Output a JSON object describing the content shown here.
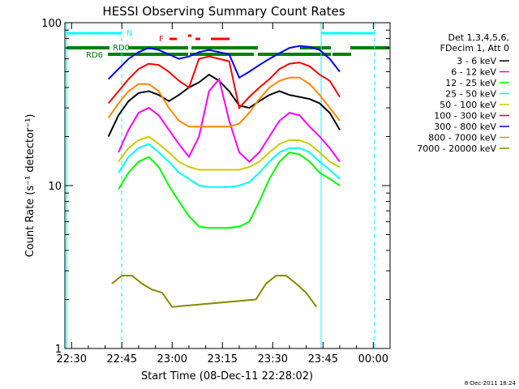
{
  "chart_data": {
    "type": "line",
    "title": "HESSI Observing Summary Count Rates",
    "xlabel": "Start Time (08-Dec-11 22:28:02)",
    "ylabel": "Count Rate (s⁻¹ detector⁻¹)",
    "y_scale": "log",
    "ylim": [
      1,
      100
    ],
    "xlim_minutes_after_2230": [
      -2,
      95
    ],
    "x_ticks": [
      "22:30",
      "22:45",
      "23:00",
      "23:15",
      "23:30",
      "23:45",
      "00:00"
    ],
    "y_ticks": [
      "1",
      "10",
      "100"
    ],
    "legend_title": [
      "Det 1,3,4,5,6,",
      "FDecim 1, Att 0"
    ],
    "legend_position": "right",
    "series": [
      {
        "name": "3 - 6 keV",
        "color": "#000000",
        "x": [
          11,
          14,
          17,
          20,
          23,
          26,
          29,
          32,
          35,
          38,
          41,
          44,
          47,
          50,
          53,
          56,
          59,
          62,
          65,
          68,
          71,
          74,
          77,
          80
        ],
        "values": [
          20,
          27,
          33,
          37,
          38,
          36,
          33,
          36,
          40,
          43,
          48,
          44,
          38,
          31,
          30,
          33,
          36,
          38,
          36,
          35,
          34,
          32,
          28,
          22
        ]
      },
      {
        "name": "6 - 12 keV",
        "color": "#ff00ff",
        "x": [
          14,
          17,
          20,
          23,
          26,
          29,
          32,
          35,
          38,
          41,
          44,
          47,
          50,
          53,
          56,
          59,
          62,
          65,
          68,
          71,
          74,
          77,
          80
        ],
        "values": [
          16,
          22,
          28,
          30,
          27,
          22,
          18,
          15,
          20,
          38,
          45,
          25,
          16,
          14,
          16,
          20,
          25,
          28,
          27,
          23,
          20,
          17,
          14
        ]
      },
      {
        "name": "12 - 25 keV",
        "color": "#00ff00",
        "x": [
          14,
          17,
          20,
          23,
          26,
          29,
          32,
          35,
          38,
          41,
          44,
          47,
          50,
          53,
          56,
          59,
          62,
          65,
          68,
          71,
          74,
          77,
          80
        ],
        "values": [
          9.5,
          12,
          14,
          15,
          13,
          10,
          8,
          6.5,
          5.6,
          5.5,
          5.5,
          5.5,
          5.6,
          6,
          8,
          11,
          14,
          16,
          15.5,
          14,
          12,
          11,
          10
        ]
      },
      {
        "name": "25 - 50 keV",
        "color": "#00ffff",
        "x": [
          14,
          17,
          20,
          23,
          26,
          29,
          32,
          35,
          38,
          41,
          44,
          47,
          50,
          53,
          56,
          59,
          62,
          65,
          68,
          71,
          74,
          77,
          80
        ],
        "values": [
          12,
          15,
          17,
          18,
          16,
          14,
          12,
          11,
          10,
          9.8,
          9.8,
          9.8,
          10,
          10.5,
          12,
          14,
          16,
          17,
          17,
          16,
          14,
          12.5,
          11
        ]
      },
      {
        "name": "50 - 100 keV",
        "color": "#cccc00",
        "x": [
          14,
          17,
          20,
          23,
          26,
          29,
          32,
          35,
          38,
          41,
          44,
          47,
          50,
          53,
          56,
          59,
          62,
          65,
          68,
          71,
          74,
          77,
          80
        ],
        "values": [
          14,
          17,
          19,
          20,
          18,
          16,
          14,
          13,
          12.5,
          12.5,
          12.5,
          12.5,
          12.5,
          13,
          14,
          16,
          18,
          19,
          19,
          18,
          16,
          14,
          13
        ]
      },
      {
        "name": "100 - 300 keV",
        "color": "#ff0000",
        "x": [
          11,
          14,
          17,
          20,
          23,
          26,
          29,
          32,
          35,
          38,
          41,
          44,
          47,
          50,
          53,
          56,
          59,
          62,
          65,
          68,
          71,
          74,
          77,
          80
        ],
        "values": [
          32,
          38,
          45,
          52,
          56,
          55,
          50,
          44,
          40,
          60,
          62,
          60,
          58,
          30,
          35,
          40,
          45,
          52,
          56,
          57,
          54,
          48,
          44,
          35
        ]
      },
      {
        "name": "300 - 800 keV",
        "color": "#0000ff",
        "x": [
          11,
          14,
          17,
          20,
          23,
          26,
          29,
          32,
          35,
          38,
          41,
          44,
          47,
          50,
          53,
          56,
          59,
          62,
          65,
          68,
          71,
          74,
          77,
          80
        ],
        "values": [
          45,
          52,
          60,
          66,
          70,
          68,
          64,
          60,
          62,
          66,
          68,
          66,
          64,
          46,
          50,
          55,
          60,
          65,
          70,
          72,
          71,
          68,
          60,
          50
        ]
      },
      {
        "name": "800 - 7000 keV",
        "color": "#ff8800",
        "x": [
          11,
          14,
          17,
          20,
          23,
          26,
          29,
          32,
          35,
          38,
          41,
          44,
          47,
          50,
          53,
          56,
          59,
          62,
          65,
          68,
          71,
          74,
          77,
          80
        ],
        "values": [
          26,
          32,
          38,
          42,
          42,
          38,
          30,
          25,
          23,
          23,
          23,
          23,
          23,
          24,
          28,
          34,
          40,
          44,
          46,
          46,
          42,
          36,
          30,
          25
        ]
      },
      {
        "name": "7000 - 20000 keV",
        "color": "#888800",
        "x": [
          12,
          15,
          18,
          21,
          24,
          27,
          30,
          55,
          58,
          61,
          64,
          67,
          70,
          73
        ],
        "values": [
          2.5,
          2.8,
          2.8,
          2.5,
          2.3,
          2.2,
          1.8,
          2,
          2.5,
          2.8,
          2.8,
          2.5,
          2.2,
          1.8
        ]
      }
    ],
    "annotations": [
      {
        "text": "N",
        "color": "#00ffff"
      },
      {
        "text": "RD0",
        "color": "#008000"
      },
      {
        "text": "RD6",
        "color": "#008000"
      },
      {
        "text": "F",
        "color": "#ff0000"
      }
    ],
    "footer_timestamp": "8-Dec-2011 18:24"
  }
}
